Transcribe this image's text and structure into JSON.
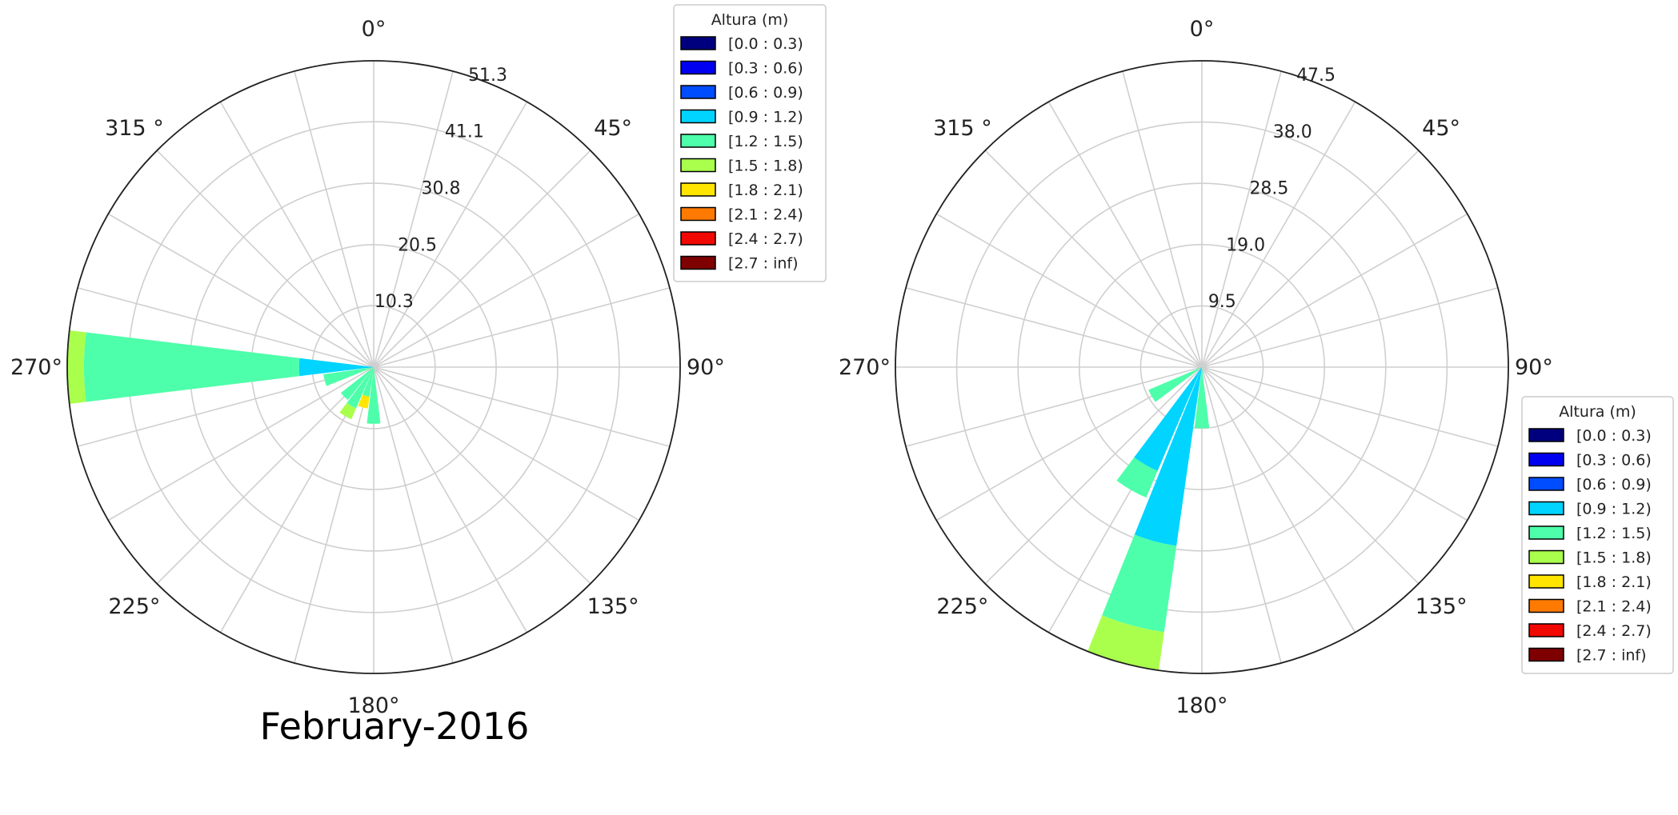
{
  "caption": "February-2016",
  "chart_data": [
    {
      "type": "windrose",
      "theta_direction": "clockwise",
      "theta_zero": "N",
      "angle_labels": [
        "0°",
        "45°",
        "90°",
        "135°",
        "180°",
        "225°",
        "270°",
        "315 °"
      ],
      "radial_ticks": [
        10.3,
        20.5,
        30.8,
        41.1,
        51.3
      ],
      "radial_tick_labels": [
        "10.3",
        "20.5",
        "30.8",
        "41.1",
        "51.3"
      ],
      "rmax": 51.3,
      "grid": true,
      "sector_width_deg": 15,
      "legend": {
        "title": "Altura (m)",
        "position": "top-right",
        "bins": [
          "[0.0 : 0.3)",
          "[0.3 : 0.6)",
          "[0.6 : 0.9)",
          "[0.9 : 1.2)",
          "[1.2 : 1.5)",
          "[1.5 : 1.8)",
          "[1.8 : 2.1)",
          "[2.1 : 2.4)",
          "[2.4 : 2.7)",
          "[2.7 : inf)"
        ],
        "colors": [
          "#00007f",
          "#0000f1",
          "#004dff",
          "#00d4ff",
          "#4dffaa",
          "#aaff4d",
          "#ffe500",
          "#ff7a00",
          "#f10800",
          "#7f0000"
        ]
      },
      "sectors": [
        {
          "direction": 180,
          "segments": [
            {
              "bin": 4,
              "value": 9.5
            }
          ]
        },
        {
          "direction": 195,
          "segments": [
            {
              "bin": 4,
              "value": 5.0
            },
            {
              "bin": 6,
              "value": 2.0
            }
          ]
        },
        {
          "direction": 210,
          "segments": [
            {
              "bin": 4,
              "value": 7.5
            },
            {
              "bin": 5,
              "value": 2.0
            }
          ]
        },
        {
          "direction": 225,
          "segments": [
            {
              "bin": 4,
              "value": 7.0
            }
          ]
        },
        {
          "direction": 255,
          "segments": [
            {
              "bin": 4,
              "value": 8.5
            }
          ]
        },
        {
          "direction": 270,
          "segments": [
            {
              "bin": 3,
              "value": 12.5
            },
            {
              "bin": 4,
              "value": 36.0
            },
            {
              "bin": 5,
              "value": 2.8
            }
          ]
        }
      ]
    },
    {
      "type": "windrose",
      "theta_direction": "clockwise",
      "theta_zero": "N",
      "angle_labels": [
        "0°",
        "45°",
        "90°",
        "135°",
        "180°",
        "225°",
        "270°",
        "315 °"
      ],
      "radial_ticks": [
        9.5,
        19.0,
        28.5,
        38.0,
        47.5
      ],
      "radial_tick_labels": [
        "9.5",
        "19.0",
        "28.5",
        "38.0",
        "47.5"
      ],
      "rmax": 47.5,
      "grid": true,
      "sector_width_deg": 15,
      "legend": {
        "title": "Altura (m)",
        "position": "bottom-right",
        "bins": [
          "[0.0 : 0.3)",
          "[0.3 : 0.6)",
          "[0.6 : 0.9)",
          "[0.9 : 1.2)",
          "[1.2 : 1.5)",
          "[1.5 : 1.8)",
          "[1.8 : 2.1)",
          "[2.1 : 2.4)",
          "[2.4 : 2.7)",
          "[2.7 : inf)"
        ],
        "colors": [
          "#00007f",
          "#0000f1",
          "#004dff",
          "#00d4ff",
          "#4dffaa",
          "#aaff4d",
          "#ffe500",
          "#ff7a00",
          "#f10800",
          "#7f0000"
        ]
      },
      "sectors": [
        {
          "direction": 180,
          "segments": [
            {
              "bin": 4,
              "value": 9.5
            }
          ]
        },
        {
          "direction": 195,
          "segments": [
            {
              "bin": 3,
              "value": 28.0
            },
            {
              "bin": 4,
              "value": 13.5
            },
            {
              "bin": 5,
              "value": 6.0
            }
          ]
        },
        {
          "direction": 210,
          "segments": [
            {
              "bin": 3,
              "value": 17.5
            },
            {
              "bin": 4,
              "value": 4.5
            }
          ]
        },
        {
          "direction": 240,
          "segments": [
            {
              "bin": 4,
              "value": 9.0
            }
          ]
        }
      ]
    }
  ]
}
